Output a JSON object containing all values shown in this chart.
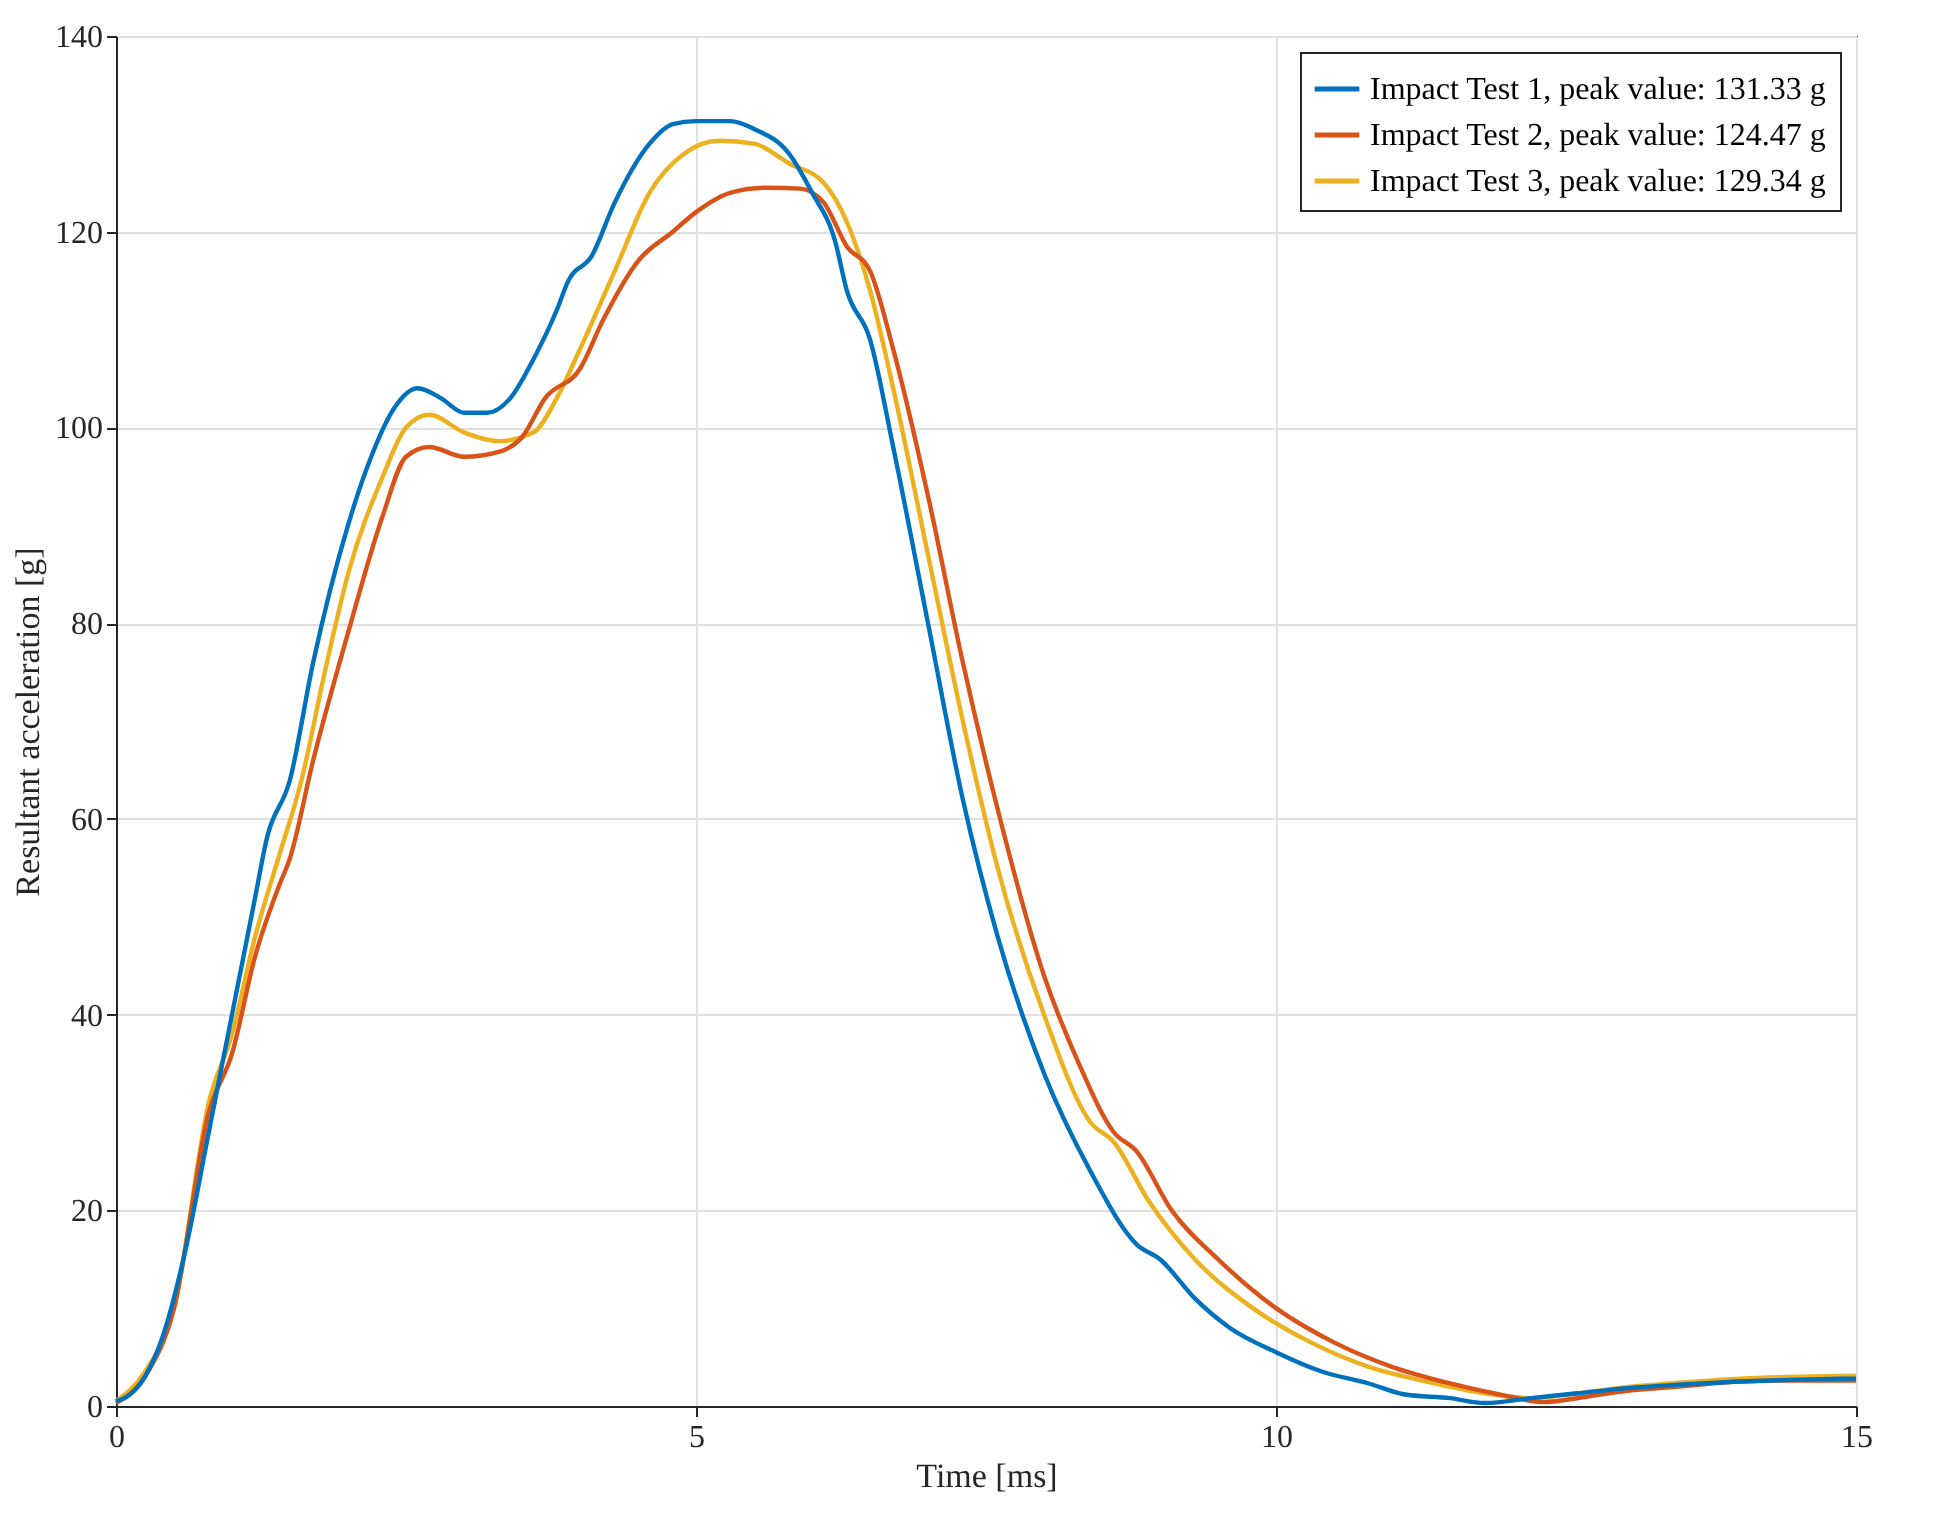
{
  "chart_data": {
    "type": "line",
    "xlabel": "Time [ms]",
    "ylabel": "Resultant acceleration [g]",
    "xlim": [
      0,
      15
    ],
    "ylim": [
      0,
      140
    ],
    "xticks": [
      0,
      5,
      10,
      15
    ],
    "yticks": [
      0,
      20,
      40,
      60,
      80,
      100,
      120,
      140
    ],
    "grid": true,
    "legend": "top right",
    "line_style": "solid",
    "series": [
      {
        "name": "Impact Test 1, peak value: 131.33 g",
        "color": "#0072bd",
        "x": [
          0,
          0.1,
          0.25,
          0.4,
          0.6,
          0.8,
          1.0,
          1.2,
          1.3,
          1.5,
          1.7,
          2.0,
          2.2,
          2.4,
          2.6,
          2.8,
          3.0,
          3.2,
          3.4,
          3.6,
          3.8,
          3.9,
          4.1,
          4.3,
          4.6,
          4.8,
          5.0,
          5.3,
          5.5,
          5.8,
          6.0,
          6.2,
          6.3,
          6.5,
          6.7,
          7.0,
          7.3,
          7.6,
          8.0,
          8.4,
          8.8,
          9.0,
          9.3,
          9.6,
          10.0,
          10.4,
          10.8,
          11.1,
          11.5,
          11.8,
          12.2,
          12.6,
          13.0,
          13.5,
          14.0,
          14.5,
          15
        ],
        "values": [
          0.5,
          1,
          3,
          7,
          16,
          28,
          40,
          52,
          58,
          64,
          76,
          90,
          97,
          102,
          104,
          103,
          101.5,
          101.5,
          103,
          107,
          112,
          115,
          117.5,
          123,
          129,
          131,
          131.3,
          131.3,
          130.5,
          128,
          124,
          119,
          114,
          109,
          98,
          80,
          62,
          48,
          34,
          24,
          16.5,
          15,
          11,
          8,
          5.5,
          3.5,
          2.3,
          1.2,
          0.8,
          0.3,
          0.8,
          1.3,
          1.8,
          2.2,
          2.5,
          2.7,
          2.8
        ]
      },
      {
        "name": "Impact Test 2, peak value: 124.47 g",
        "color": "#d95319",
        "x": [
          0,
          0.25,
          0.5,
          0.8,
          1.0,
          1.2,
          1.4,
          1.5,
          1.7,
          2.0,
          2.3,
          2.5,
          2.7,
          3.0,
          3.3,
          3.5,
          3.7,
          4.0,
          4.2,
          4.5,
          4.8,
          5.0,
          5.3,
          5.6,
          5.9,
          6.1,
          6.3,
          6.5,
          6.7,
          7.0,
          7.3,
          7.6,
          8.0,
          8.3,
          8.6,
          8.8,
          9.1,
          9.5,
          10.0,
          10.5,
          11.0,
          11.5,
          12.0,
          12.3,
          12.7,
          13.0,
          13.5,
          14.0,
          14.5,
          15
        ],
        "values": [
          0.3,
          3,
          10,
          30,
          36,
          46,
          53,
          56,
          66,
          79,
          91,
          97,
          98,
          97,
          97.5,
          99,
          103,
          106,
          111,
          117,
          120,
          122,
          124,
          124.5,
          124.4,
          123,
          118.5,
          116,
          108,
          93,
          76,
          61,
          44,
          35,
          28,
          26,
          20,
          15,
          10,
          6.5,
          4,
          2.3,
          1,
          0.4,
          1,
          1.5,
          2,
          2.5,
          2.6,
          2.6
        ]
      },
      {
        "name": "Impact Test 3, peak value: 129.34 g",
        "color": "#edb120",
        "x": [
          0,
          0.25,
          0.5,
          0.8,
          1.0,
          1.2,
          1.4,
          1.6,
          1.8,
          2.0,
          2.3,
          2.5,
          2.7,
          3.0,
          3.3,
          3.6,
          3.8,
          4.0,
          4.3,
          4.6,
          4.9,
          5.2,
          5.5,
          5.8,
          6.1,
          6.3,
          6.5,
          6.7,
          7.0,
          7.3,
          7.6,
          8.0,
          8.4,
          8.6,
          8.9,
          9.3,
          9.8,
          10.3,
          10.8,
          11.3,
          11.8,
          12.2,
          12.6,
          13.0,
          13.5,
          14.0,
          14.5,
          15
        ],
        "values": [
          0.5,
          3.5,
          10,
          31,
          38,
          48,
          56,
          64,
          75,
          85,
          95,
          100,
          101.3,
          99.5,
          98.6,
          99.5,
          103,
          108,
          116,
          124,
          128,
          129.3,
          129,
          127,
          125,
          121,
          114,
          104,
          87,
          70,
          55,
          40,
          29,
          27,
          21,
          15,
          10,
          6.5,
          4,
          2.5,
          1.3,
          0.8,
          1.3,
          1.9,
          2.4,
          2.8,
          3.0,
          3.1
        ]
      }
    ]
  }
}
